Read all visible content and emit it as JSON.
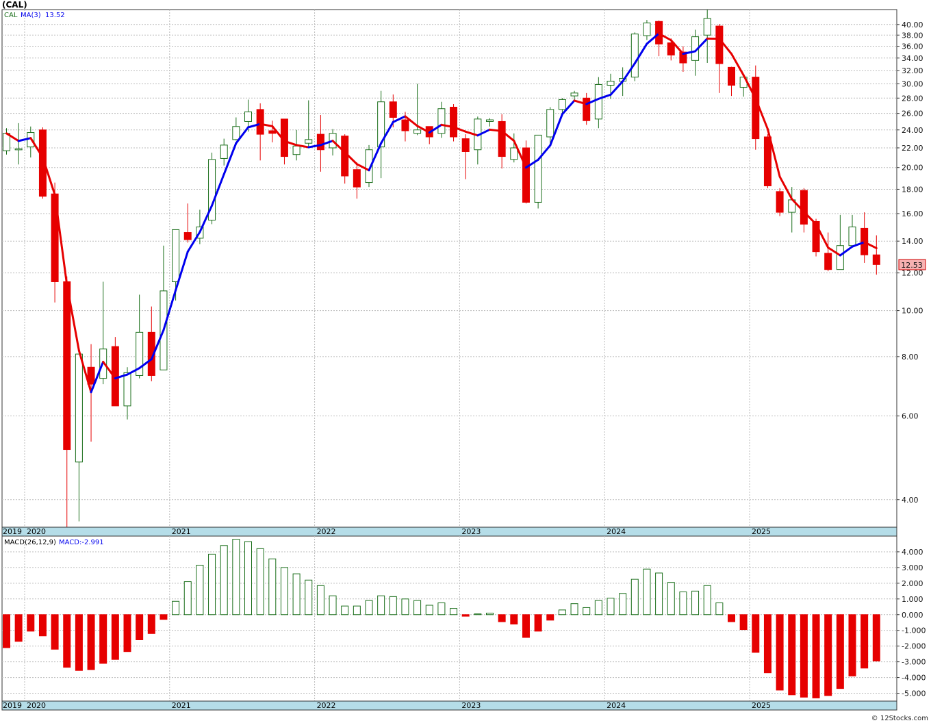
{
  "title": "(CAL)",
  "legend": {
    "symbol": "CAL",
    "ma_label": "MA(3)",
    "ma_value": "13.52"
  },
  "price_tag": "12.53",
  "macd_header": {
    "label": "MACD(26,12,9)",
    "value_label": "MACD:-2.991"
  },
  "watermark": "© 12Stocks.com",
  "years": [
    "2019",
    "2020",
    "2021",
    "2022",
    "2023",
    "2024",
    "2025"
  ],
  "colors": {
    "up": "#1a6e1a",
    "down": "#e60000",
    "ma_up": "#0000ee",
    "ma_down": "#e60000",
    "axis_band": "#b5dde8"
  },
  "chart_data": [
    {
      "type": "candlestick",
      "title": "(CAL)",
      "interval": "monthly",
      "y_scale": "log",
      "ylim": [
        3.5,
        43
      ],
      "y_ticks": [
        "40.00",
        "38.00",
        "36.00",
        "34.00",
        "32.00",
        "30.00",
        "28.00",
        "26.00",
        "24.00",
        "22.00",
        "20.00",
        "18.00",
        "16.00",
        "14.00",
        "12.00",
        "10.00",
        "8.00",
        "6.00",
        "4.00"
      ],
      "grid": true,
      "candles": [
        {
          "date": "2019-11",
          "o": 21.7,
          "h": 24.2,
          "l": 21.3,
          "c": 23.6
        },
        {
          "date": "2019-12",
          "o": 21.8,
          "h": 24.8,
          "l": 20.3,
          "c": 21.9
        },
        {
          "date": "2020-01",
          "o": 22.1,
          "h": 24.4,
          "l": 21.0,
          "c": 23.7
        },
        {
          "date": "2020-02",
          "o": 24.0,
          "h": 24.3,
          "l": 17.2,
          "c": 17.4
        },
        {
          "date": "2020-03",
          "o": 17.6,
          "h": 18.6,
          "l": 10.4,
          "c": 11.5
        },
        {
          "date": "2020-04",
          "o": 11.5,
          "h": 11.8,
          "l": 3.5,
          "c": 5.1
        },
        {
          "date": "2020-05",
          "o": 4.8,
          "h": 8.1,
          "l": 3.6,
          "c": 8.1
        },
        {
          "date": "2020-06",
          "o": 7.6,
          "h": 8.5,
          "l": 5.3,
          "c": 7.0
        },
        {
          "date": "2020-07",
          "o": 7.2,
          "h": 11.5,
          "l": 7.0,
          "c": 8.3
        },
        {
          "date": "2020-08",
          "o": 8.4,
          "h": 8.8,
          "l": 6.3,
          "c": 6.3
        },
        {
          "date": "2020-09",
          "o": 6.3,
          "h": 7.6,
          "l": 5.9,
          "c": 7.4
        },
        {
          "date": "2020-10",
          "o": 7.3,
          "h": 10.8,
          "l": 7.2,
          "c": 9.0
        },
        {
          "date": "2020-11",
          "o": 9.0,
          "h": 10.2,
          "l": 7.1,
          "c": 7.3
        },
        {
          "date": "2020-12",
          "o": 7.5,
          "h": 13.7,
          "l": 7.5,
          "c": 11.0
        },
        {
          "date": "2021-01",
          "o": 11.5,
          "h": 14.8,
          "l": 10.5,
          "c": 14.8
        },
        {
          "date": "2021-02",
          "o": 14.6,
          "h": 16.8,
          "l": 13.9,
          "c": 14.1
        },
        {
          "date": "2021-03",
          "o": 14.2,
          "h": 16.3,
          "l": 13.8,
          "c": 15.0
        },
        {
          "date": "2021-04",
          "o": 15.5,
          "h": 21.5,
          "l": 15.2,
          "c": 20.8
        },
        {
          "date": "2021-05",
          "o": 20.9,
          "h": 23.0,
          "l": 20.2,
          "c": 22.3
        },
        {
          "date": "2021-06",
          "o": 22.9,
          "h": 25.5,
          "l": 22.8,
          "c": 24.4
        },
        {
          "date": "2021-07",
          "o": 25.0,
          "h": 27.8,
          "l": 23.8,
          "c": 26.2
        },
        {
          "date": "2021-08",
          "o": 26.5,
          "h": 27.3,
          "l": 20.7,
          "c": 23.5
        },
        {
          "date": "2021-09",
          "o": 23.9,
          "h": 25.1,
          "l": 22.6,
          "c": 23.6
        },
        {
          "date": "2021-10",
          "o": 25.3,
          "h": 25.3,
          "l": 20.3,
          "c": 21.1
        },
        {
          "date": "2021-11",
          "o": 21.3,
          "h": 24.0,
          "l": 20.7,
          "c": 22.2
        },
        {
          "date": "2021-12",
          "o": 22.5,
          "h": 27.7,
          "l": 22.0,
          "c": 22.9
        },
        {
          "date": "2022-01",
          "o": 23.5,
          "h": 25.8,
          "l": 19.6,
          "c": 21.8
        },
        {
          "date": "2022-02",
          "o": 22.0,
          "h": 24.1,
          "l": 21.2,
          "c": 23.6
        },
        {
          "date": "2022-03",
          "o": 23.3,
          "h": 23.5,
          "l": 18.5,
          "c": 19.2
        },
        {
          "date": "2022-04",
          "o": 19.8,
          "h": 20.5,
          "l": 17.2,
          "c": 18.2
        },
        {
          "date": "2022-05",
          "o": 18.6,
          "h": 22.3,
          "l": 18.2,
          "c": 21.8
        },
        {
          "date": "2022-06",
          "o": 22.1,
          "h": 29.0,
          "l": 19.0,
          "c": 27.5
        },
        {
          "date": "2022-07",
          "o": 27.5,
          "h": 28.5,
          "l": 24.3,
          "c": 25.5
        },
        {
          "date": "2022-08",
          "o": 25.2,
          "h": 26.2,
          "l": 22.7,
          "c": 23.9
        },
        {
          "date": "2022-09",
          "o": 23.6,
          "h": 30.0,
          "l": 23.4,
          "c": 24.0
        },
        {
          "date": "2022-10",
          "o": 24.4,
          "h": 24.4,
          "l": 22.4,
          "c": 23.2
        },
        {
          "date": "2022-11",
          "o": 23.6,
          "h": 27.5,
          "l": 23.1,
          "c": 26.6
        },
        {
          "date": "2022-12",
          "o": 26.8,
          "h": 27.2,
          "l": 22.7,
          "c": 23.2
        },
        {
          "date": "2023-01",
          "o": 23.0,
          "h": 23.5,
          "l": 18.9,
          "c": 21.6
        },
        {
          "date": "2023-02",
          "o": 21.8,
          "h": 25.6,
          "l": 20.3,
          "c": 25.3
        },
        {
          "date": "2023-03",
          "o": 25.0,
          "h": 25.4,
          "l": 24.4,
          "c": 25.2
        },
        {
          "date": "2023-04",
          "o": 25.0,
          "h": 25.9,
          "l": 19.9,
          "c": 21.1
        },
        {
          "date": "2023-05",
          "o": 20.8,
          "h": 23.6,
          "l": 20.5,
          "c": 22.0
        },
        {
          "date": "2023-06",
          "o": 22.0,
          "h": 22.8,
          "l": 16.8,
          "c": 16.9
        },
        {
          "date": "2023-07",
          "o": 16.9,
          "h": 23.4,
          "l": 16.4,
          "c": 23.4
        },
        {
          "date": "2023-08",
          "o": 23.2,
          "h": 26.8,
          "l": 22.3,
          "c": 26.5
        },
        {
          "date": "2023-09",
          "o": 26.5,
          "h": 28.0,
          "l": 25.8,
          "c": 27.8
        },
        {
          "date": "2023-10",
          "o": 28.3,
          "h": 29.0,
          "l": 27.6,
          "c": 28.7
        },
        {
          "date": "2023-11",
          "o": 28.0,
          "h": 28.7,
          "l": 24.6,
          "c": 25.1
        },
        {
          "date": "2023-12",
          "o": 25.3,
          "h": 31.0,
          "l": 24.2,
          "c": 29.9
        },
        {
          "date": "2024-01",
          "o": 29.8,
          "h": 31.5,
          "l": 27.9,
          "c": 30.4
        },
        {
          "date": "2024-02",
          "o": 30.4,
          "h": 32.5,
          "l": 28.3,
          "c": 30.8
        },
        {
          "date": "2024-03",
          "o": 31.0,
          "h": 38.5,
          "l": 30.4,
          "c": 38.2
        },
        {
          "date": "2024-04",
          "o": 37.9,
          "h": 40.9,
          "l": 37.1,
          "c": 40.3
        },
        {
          "date": "2024-05",
          "o": 40.6,
          "h": 40.8,
          "l": 34.3,
          "c": 36.4
        },
        {
          "date": "2024-06",
          "o": 36.6,
          "h": 37.4,
          "l": 33.6,
          "c": 34.5
        },
        {
          "date": "2024-07",
          "o": 35.0,
          "h": 36.0,
          "l": 31.8,
          "c": 33.2
        },
        {
          "date": "2024-08",
          "o": 33.6,
          "h": 39.0,
          "l": 31.2,
          "c": 37.7
        },
        {
          "date": "2024-09",
          "o": 38.0,
          "h": 43.0,
          "l": 33.2,
          "c": 41.2
        },
        {
          "date": "2024-10",
          "o": 39.7,
          "h": 40.1,
          "l": 28.7,
          "c": 33.1
        },
        {
          "date": "2024-11",
          "o": 32.5,
          "h": 32.6,
          "l": 28.3,
          "c": 29.8
        },
        {
          "date": "2024-12",
          "o": 29.5,
          "h": 30.8,
          "l": 28.2,
          "c": 31.0
        },
        {
          "date": "2025-01",
          "o": 31.0,
          "h": 32.8,
          "l": 21.8,
          "c": 23.0
        },
        {
          "date": "2025-02",
          "o": 23.2,
          "h": 23.5,
          "l": 18.1,
          "c": 18.3
        },
        {
          "date": "2025-03",
          "o": 17.8,
          "h": 18.1,
          "l": 15.8,
          "c": 16.1
        },
        {
          "date": "2025-04",
          "o": 16.1,
          "h": 18.2,
          "l": 14.6,
          "c": 17.1
        },
        {
          "date": "2025-05",
          "o": 17.9,
          "h": 18.1,
          "l": 14.6,
          "c": 15.2
        },
        {
          "date": "2025-06",
          "o": 15.4,
          "h": 15.6,
          "l": 13.0,
          "c": 13.3
        },
        {
          "date": "2025-07",
          "o": 13.2,
          "h": 14.6,
          "l": 12.1,
          "c": 12.2
        },
        {
          "date": "2025-08",
          "o": 12.2,
          "h": 15.9,
          "l": 12.2,
          "c": 13.7
        },
        {
          "date": "2025-09",
          "o": 13.7,
          "h": 15.9,
          "l": 13.6,
          "c": 15.0
        },
        {
          "date": "2025-10",
          "o": 14.9,
          "h": 16.1,
          "l": 12.6,
          "c": 13.1
        },
        {
          "date": "2025-11",
          "o": 13.1,
          "h": 14.4,
          "l": 11.9,
          "c": 12.5
        }
      ],
      "moving_average": {
        "name": "MA(3)",
        "last_value": 13.52
      }
    },
    {
      "type": "bar",
      "title": "MACD(26,12,9)",
      "ylim": [
        -5.5,
        5
      ],
      "y_ticks": [
        "4.000",
        "3.000",
        "2.000",
        "1.000",
        "0.000",
        "-1.000",
        "-2.000",
        "-3.000",
        "-4.000",
        "-5.000"
      ],
      "grid": true,
      "values": [
        -2.1,
        -1.7,
        -1.05,
        -1.35,
        -2.2,
        -3.35,
        -3.55,
        -3.5,
        -3.1,
        -2.85,
        -2.35,
        -1.6,
        -1.2,
        -0.3,
        0.85,
        2.1,
        3.15,
        3.85,
        4.4,
        4.8,
        4.65,
        4.2,
        3.55,
        3.0,
        2.6,
        2.2,
        1.85,
        1.2,
        0.55,
        0.55,
        0.9,
        1.2,
        1.15,
        1.0,
        0.9,
        0.6,
        0.75,
        0.4,
        -0.1,
        0.05,
        0.1,
        -0.45,
        -0.6,
        -1.45,
        -1.05,
        -0.35,
        0.3,
        0.7,
        0.45,
        0.9,
        1.05,
        1.35,
        2.25,
        2.9,
        2.65,
        2.05,
        1.45,
        1.5,
        1.85,
        0.75,
        -0.45,
        -0.95,
        -2.4,
        -3.7,
        -4.8,
        -5.1,
        -5.25,
        -5.3,
        -5.15,
        -4.7,
        -3.9,
        -3.4,
        -2.95
      ]
    }
  ]
}
